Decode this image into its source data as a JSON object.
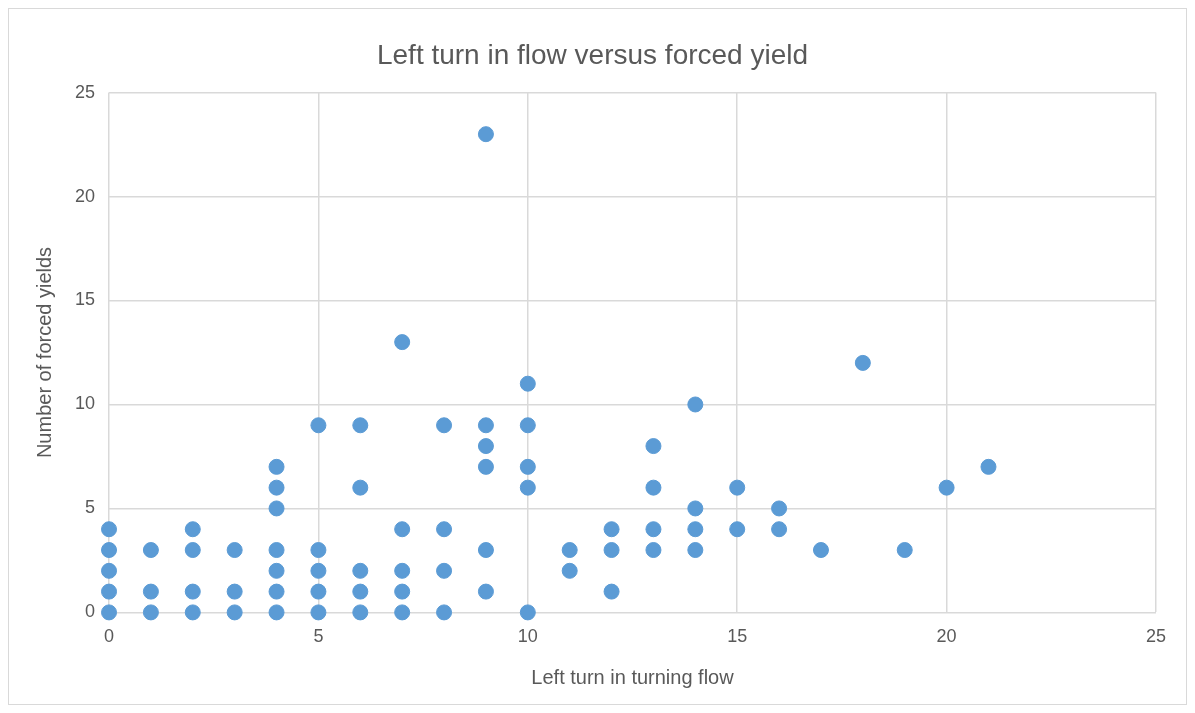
{
  "chart_data": {
    "type": "scatter",
    "title": "Left turn in flow versus forced yield",
    "xlabel": "Left turn in turning flow",
    "ylabel": "Number of forced yields",
    "x": [
      0,
      0,
      0,
      0,
      0,
      1,
      1,
      1,
      2,
      2,
      2,
      2,
      3,
      3,
      3,
      4,
      4,
      4,
      4,
      4,
      4,
      4,
      5,
      5,
      5,
      5,
      5,
      6,
      6,
      6,
      6,
      6,
      7,
      7,
      7,
      7,
      7,
      8,
      8,
      8,
      8,
      9,
      9,
      9,
      9,
      9,
      9,
      10,
      10,
      10,
      10,
      10,
      11,
      11,
      12,
      12,
      12,
      13,
      13,
      13,
      13,
      14,
      14,
      14,
      14,
      15,
      15,
      16,
      16,
      17,
      18,
      19,
      20,
      21
    ],
    "series": [
      {
        "color": "#5b9bd5",
        "values": [
          0,
          1,
          2,
          3,
          4,
          0,
          1,
          3,
          0,
          1,
          3,
          4,
          0,
          1,
          3,
          0,
          1,
          2,
          3,
          5,
          6,
          7,
          0,
          1,
          2,
          3,
          9,
          0,
          1,
          2,
          6,
          9,
          0,
          1,
          2,
          4,
          13,
          0,
          2,
          4,
          9,
          1,
          3,
          7,
          8,
          9,
          23,
          0,
          6,
          7,
          9,
          11,
          2,
          3,
          1,
          3,
          4,
          3,
          4,
          6,
          8,
          3,
          4,
          5,
          10,
          4,
          6,
          4,
          5,
          3,
          12,
          3,
          6,
          7
        ]
      }
    ],
    "xlim": [
      0,
      25
    ],
    "xticks": [
      0,
      5,
      10,
      15,
      20,
      25
    ],
    "ylim": [
      0,
      25
    ],
    "yticks": [
      0,
      5,
      10,
      15,
      20,
      25
    ],
    "grid": true,
    "legend": false,
    "marker": "circle"
  }
}
